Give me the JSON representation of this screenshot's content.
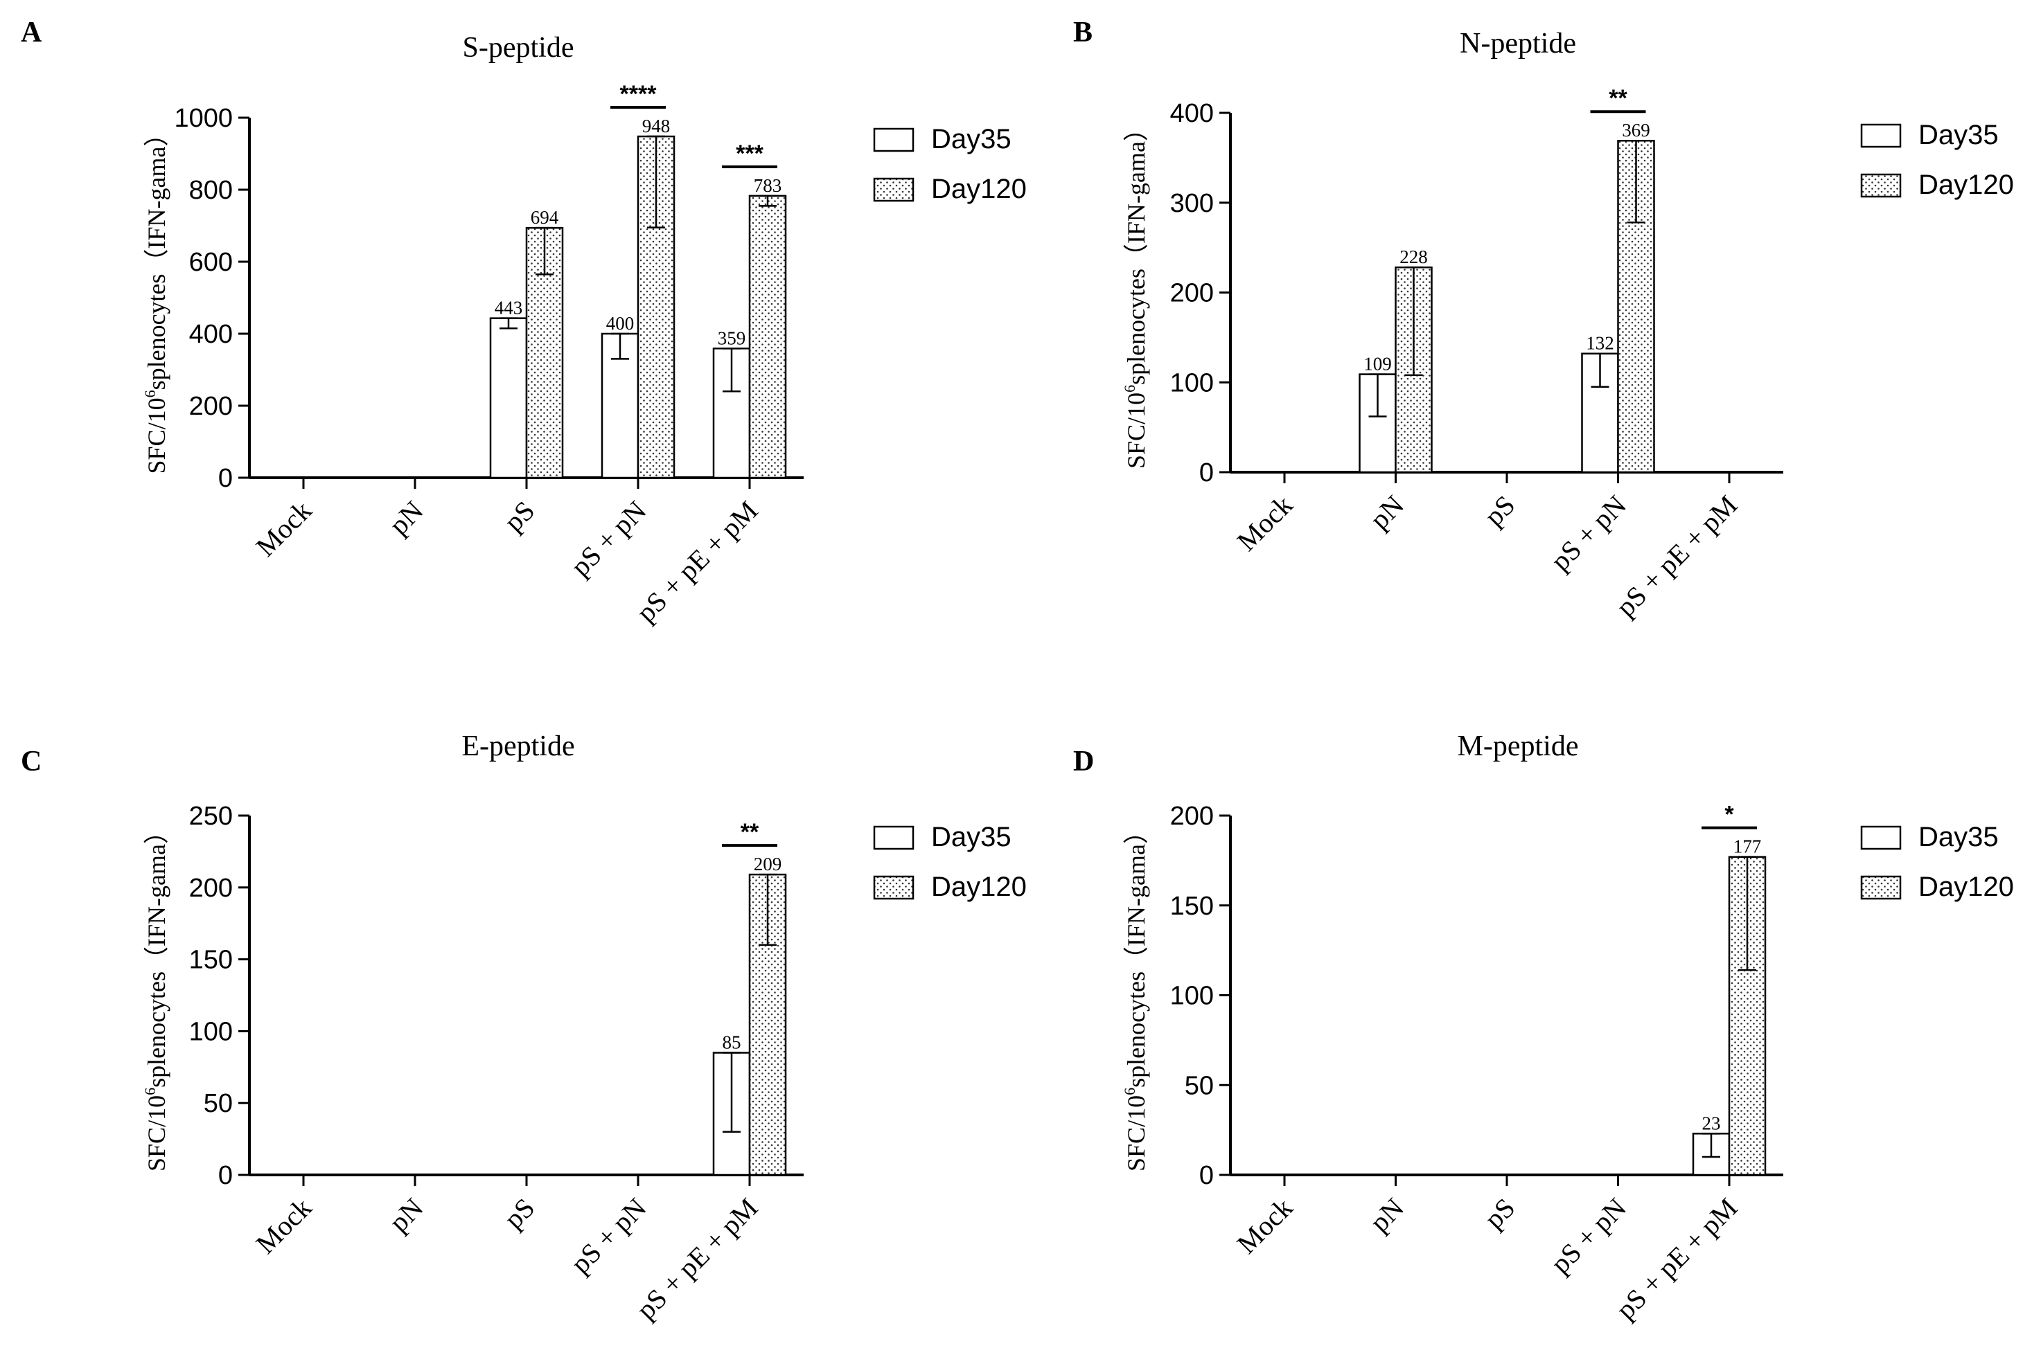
{
  "chart_data": [
    {
      "type": "bar",
      "panel_label": "A",
      "title": "S-peptide",
      "xlabel": "",
      "ylabel_main": "SFC/10",
      "ylabel_sup": "6",
      "ylabel_rest": "splenocytes（IFN-gama）",
      "categories": [
        "Mock",
        "pN",
        "pS",
        "pS + pN",
        "pS + pE + pM"
      ],
      "ylim": [
        0,
        1000
      ],
      "yticks": [
        "0",
        "200",
        "400",
        "600",
        "800",
        "1000"
      ],
      "series": [
        {
          "name": "Day35",
          "pattern": "open",
          "values": [
            0,
            0,
            443,
            400,
            359
          ],
          "labels": [
            "",
            "",
            "443",
            "400",
            "359"
          ],
          "err_low": [
            null,
            null,
            415,
            330,
            240
          ],
          "err_high": [
            null,
            null,
            443,
            400,
            359
          ]
        },
        {
          "name": "Day120",
          "pattern": "dotted",
          "values": [
            0,
            0,
            694,
            948,
            783
          ],
          "labels": [
            "",
            "",
            "694",
            "948",
            "783"
          ],
          "err_low": [
            null,
            null,
            565,
            695,
            755
          ],
          "err_high": [
            null,
            null,
            694,
            948,
            783
          ]
        }
      ],
      "significance": [
        {
          "category_index": 3,
          "label": "****"
        },
        {
          "category_index": 4,
          "label": "***"
        }
      ],
      "legend": [
        "Day35",
        "Day120"
      ],
      "legend_placement": "right"
    },
    {
      "type": "bar",
      "panel_label": "B",
      "title": "N-peptide",
      "xlabel": "",
      "ylabel_main": "SFC/10",
      "ylabel_sup": "6",
      "ylabel_rest": "splenocytes（IFN-gama）",
      "categories": [
        "Mock",
        "pN",
        "pS",
        "pS + pN",
        "pS + pE + pM"
      ],
      "ylim": [
        0,
        400
      ],
      "yticks": [
        "0",
        "100",
        "200",
        "300",
        "400"
      ],
      "series": [
        {
          "name": "Day35",
          "pattern": "open",
          "values": [
            0,
            109,
            0,
            132,
            0
          ],
          "labels": [
            "",
            "109",
            "",
            "132",
            ""
          ],
          "err_low": [
            null,
            62,
            null,
            95,
            null
          ],
          "err_high": [
            null,
            109,
            null,
            132,
            null
          ]
        },
        {
          "name": "Day120",
          "pattern": "dotted",
          "values": [
            0,
            228,
            0,
            369,
            0
          ],
          "labels": [
            "",
            "228",
            "",
            "369",
            ""
          ],
          "err_low": [
            null,
            108,
            null,
            278,
            null
          ],
          "err_high": [
            null,
            228,
            null,
            369,
            null
          ]
        }
      ],
      "significance": [
        {
          "category_index": 3,
          "label": "**"
        }
      ],
      "legend": [
        "Day35",
        "Day120"
      ],
      "legend_placement": "right"
    },
    {
      "type": "bar",
      "panel_label": "C",
      "title": "E-peptide",
      "xlabel": "",
      "ylabel_main": "SFC/10",
      "ylabel_sup": "6",
      "ylabel_rest": "splenocytes（IFN-gama）",
      "categories": [
        "Mock",
        "pN",
        "pS",
        "pS + pN",
        "pS + pE + pM"
      ],
      "ylim": [
        0,
        250
      ],
      "yticks": [
        "0",
        "50",
        "100",
        "150",
        "200",
        "250"
      ],
      "series": [
        {
          "name": "Day35",
          "pattern": "open",
          "values": [
            0,
            0,
            0,
            0,
            85
          ],
          "labels": [
            "",
            "",
            "",
            "",
            "85"
          ],
          "err_low": [
            null,
            null,
            null,
            null,
            30
          ],
          "err_high": [
            null,
            null,
            null,
            null,
            85
          ]
        },
        {
          "name": "Day120",
          "pattern": "dotted",
          "values": [
            0,
            0,
            0,
            0,
            209
          ],
          "labels": [
            "",
            "",
            "",
            "",
            "209"
          ],
          "err_low": [
            null,
            null,
            null,
            null,
            160
          ],
          "err_high": [
            null,
            null,
            null,
            null,
            209
          ]
        }
      ],
      "significance": [
        {
          "category_index": 4,
          "label": "**"
        }
      ],
      "legend": [
        "Day35",
        "Day120"
      ],
      "legend_placement": "right"
    },
    {
      "type": "bar",
      "panel_label": "D",
      "title": "M-peptide",
      "xlabel": "",
      "ylabel_main": "SFC/10",
      "ylabel_sup": "6",
      "ylabel_rest": "splenocytes（IFN-gama）",
      "categories": [
        "Mock",
        "pN",
        "pS",
        "pS + pN",
        "pS + pE + pM"
      ],
      "ylim": [
        0,
        200
      ],
      "yticks": [
        "0",
        "50",
        "100",
        "150",
        "200"
      ],
      "series": [
        {
          "name": "Day35",
          "pattern": "open",
          "values": [
            0,
            0,
            0,
            0,
            23
          ],
          "labels": [
            "",
            "",
            "",
            "",
            "23"
          ],
          "err_low": [
            null,
            null,
            null,
            null,
            10
          ],
          "err_high": [
            null,
            null,
            null,
            null,
            23
          ]
        },
        {
          "name": "Day120",
          "pattern": "dotted",
          "values": [
            0,
            0,
            0,
            0,
            177
          ],
          "labels": [
            "",
            "",
            "",
            "",
            "177"
          ],
          "err_low": [
            null,
            null,
            null,
            null,
            114
          ],
          "err_high": [
            null,
            null,
            null,
            null,
            177
          ]
        }
      ],
      "significance": [
        {
          "category_index": 4,
          "label": "*"
        }
      ],
      "legend": [
        "Day35",
        "Day120"
      ],
      "legend_placement": "right"
    }
  ]
}
